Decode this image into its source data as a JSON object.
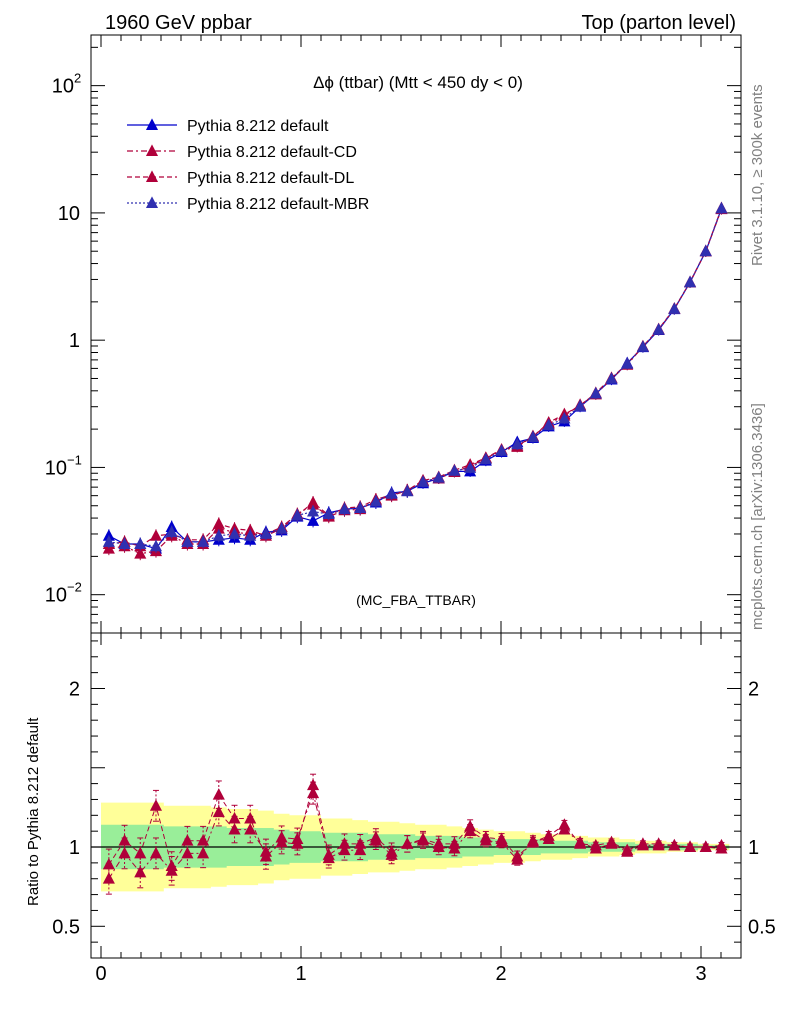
{
  "header": {
    "left": "1960 GeV ppbar",
    "right": "Top (parton level)"
  },
  "side_labels": {
    "top": "Rivet 3.1.10, ≥ 300k events",
    "bottom": "mcplots.cern.ch [arXiv:1306.3436]"
  },
  "chart_data": [
    {
      "type": "line",
      "panel": "main",
      "title": "Δϕ (ttbar) (Mtt < 450 dy < 0)",
      "watermark": "(MC_FBA_TTBAR)",
      "yscale": "log",
      "ylim": [
        0.005,
        250
      ],
      "xlim": [
        -0.05,
        3.2
      ],
      "ytick_labels": [
        {
          "value": 0.01,
          "base": "10",
          "exp": "−2"
        },
        {
          "value": 0.1,
          "base": "10",
          "exp": "−1"
        },
        {
          "value": 1,
          "base": "1",
          "exp": ""
        },
        {
          "value": 10,
          "base": "10",
          "exp": ""
        },
        {
          "value": 100,
          "base": "10",
          "exp": "2"
        }
      ],
      "legend_position": "top-left",
      "x": [
        0.0393,
        0.1178,
        0.1963,
        0.2749,
        0.3534,
        0.432,
        0.5105,
        0.589,
        0.6676,
        0.7461,
        0.8247,
        0.9032,
        0.9817,
        1.0603,
        1.1388,
        1.2174,
        1.2959,
        1.3744,
        1.453,
        1.5315,
        1.6101,
        1.6886,
        1.7671,
        1.8457,
        1.9242,
        2.0028,
        2.0813,
        2.1598,
        2.2384,
        2.3169,
        2.3955,
        2.474,
        2.5525,
        2.6311,
        2.7096,
        2.7882,
        2.8667,
        2.9452,
        3.0238,
        3.1023
      ],
      "series": [
        {
          "name": "Pythia 8.212 default",
          "color": "#0000cc",
          "dash": "solid",
          "values": [
            0.029,
            0.025,
            0.025,
            0.023,
            0.034,
            0.026,
            0.026,
            0.027,
            0.028,
            0.027,
            0.031,
            0.032,
            0.041,
            0.038,
            0.044,
            0.047,
            0.048,
            0.053,
            0.063,
            0.065,
            0.075,
            0.082,
            0.093,
            0.093,
            0.113,
            0.132,
            0.158,
            0.17,
            0.21,
            0.23,
            0.3,
            0.38,
            0.49,
            0.66,
            0.88,
            1.2,
            1.75,
            2.85,
            5.0,
            10.8
          ]
        },
        {
          "name": "Pythia 8.212 default-CD",
          "color": "#b0003a",
          "dash": "6,3,2,3",
          "values": [
            0.023,
            0.024,
            0.021,
            0.022,
            0.029,
            0.025,
            0.025,
            0.033,
            0.031,
            0.03,
            0.03,
            0.034,
            0.043,
            0.051,
            0.041,
            0.046,
            0.047,
            0.055,
            0.06,
            0.066,
            0.078,
            0.082,
            0.092,
            0.102,
            0.118,
            0.136,
            0.145,
            0.176,
            0.22,
            0.255,
            0.31,
            0.375,
            0.5,
            0.64,
            0.89,
            1.21,
            1.76,
            2.84,
            4.98,
            10.7
          ]
        },
        {
          "name": "Pythia 8.212 default-DL",
          "color": "#b0003a",
          "dash": "5,3",
          "values": [
            0.025,
            0.026,
            0.024,
            0.029,
            0.03,
            0.027,
            0.027,
            0.036,
            0.033,
            0.032,
            0.029,
            0.033,
            0.042,
            0.053,
            0.042,
            0.048,
            0.049,
            0.056,
            0.061,
            0.066,
            0.079,
            0.084,
            0.095,
            0.105,
            0.119,
            0.138,
            0.148,
            0.175,
            0.225,
            0.262,
            0.305,
            0.385,
            0.505,
            0.65,
            0.895,
            1.22,
            1.77,
            2.86,
            5.02,
            10.9
          ]
        },
        {
          "name": "Pythia 8.212 default-MBR",
          "color": "#3030b0",
          "dash": "2,2",
          "values": [
            0.026,
            0.025,
            0.025,
            0.024,
            0.031,
            0.026,
            0.026,
            0.029,
            0.03,
            0.029,
            0.03,
            0.033,
            0.042,
            0.045,
            0.043,
            0.047,
            0.048,
            0.054,
            0.062,
            0.065,
            0.077,
            0.083,
            0.094,
            0.099,
            0.116,
            0.135,
            0.152,
            0.173,
            0.215,
            0.242,
            0.303,
            0.381,
            0.498,
            0.652,
            0.887,
            1.21,
            1.76,
            2.85,
            5.0,
            10.85
          ]
        }
      ]
    },
    {
      "type": "line",
      "panel": "ratio",
      "ylabel": "Ratio to Pythia 8.212 default",
      "ylim": [
        0.3,
        2.35
      ],
      "xlim": [
        -0.05,
        3.2
      ],
      "ytick_labels": [
        {
          "value": 0.5,
          "label": "0.5"
        },
        {
          "value": 1,
          "label": "1"
        },
        {
          "value": 2,
          "label": "2"
        }
      ],
      "xtick_labels": [
        "0",
        "1",
        "2",
        "3"
      ],
      "band_colors": {
        "outer": "#ffff99",
        "inner": "#99ee99"
      },
      "bands": {
        "inner_halfwidth": [
          0.14,
          0.14,
          0.14,
          0.14,
          0.13,
          0.13,
          0.13,
          0.13,
          0.12,
          0.12,
          0.12,
          0.11,
          0.1,
          0.1,
          0.09,
          0.09,
          0.09,
          0.08,
          0.08,
          0.08,
          0.07,
          0.07,
          0.07,
          0.06,
          0.06,
          0.05,
          0.05,
          0.05,
          0.04,
          0.04,
          0.04,
          0.03,
          0.03,
          0.03,
          0.02,
          0.02,
          0.02,
          0.02,
          0.01,
          0.01
        ],
        "outer_halfwidth": [
          0.28,
          0.28,
          0.28,
          0.28,
          0.26,
          0.26,
          0.26,
          0.25,
          0.24,
          0.24,
          0.23,
          0.21,
          0.2,
          0.2,
          0.18,
          0.18,
          0.17,
          0.16,
          0.16,
          0.15,
          0.14,
          0.14,
          0.13,
          0.12,
          0.11,
          0.1,
          0.1,
          0.09,
          0.08,
          0.08,
          0.07,
          0.06,
          0.06,
          0.05,
          0.04,
          0.04,
          0.03,
          0.03,
          0.02,
          0.02
        ]
      },
      "series": [
        {
          "name": "Pythia 8.212 default-CD",
          "color": "#b0003a",
          "dash": "6,3,2,3",
          "values": [
            0.8,
            0.96,
            0.84,
            0.96,
            0.85,
            0.96,
            0.96,
            1.22,
            1.11,
            1.11,
            0.97,
            1.06,
            1.05,
            1.34,
            0.93,
            0.98,
            0.98,
            1.04,
            0.95,
            1.02,
            1.04,
            1.0,
            0.99,
            1.1,
            1.04,
            1.03,
            0.92,
            1.04,
            1.05,
            1.11,
            1.03,
            0.99,
            1.02,
            0.97,
            1.01,
            1.01,
            1.01,
            1.0,
            1.0,
            0.99
          ]
        },
        {
          "name": "Pythia 8.212 default-DL",
          "color": "#b0003a",
          "dash": "5,3",
          "values": [
            0.89,
            1.04,
            0.96,
            1.26,
            0.88,
            1.04,
            1.04,
            1.33,
            1.18,
            1.18,
            0.94,
            1.03,
            1.02,
            1.39,
            0.95,
            1.02,
            1.02,
            1.06,
            0.97,
            1.02,
            1.05,
            1.02,
            1.02,
            1.13,
            1.06,
            1.05,
            0.94,
            1.03,
            1.07,
            1.14,
            1.02,
            1.01,
            1.03,
            0.98,
            1.02,
            1.02,
            1.01,
            1.0,
            1.0,
            1.01
          ]
        }
      ]
    }
  ]
}
